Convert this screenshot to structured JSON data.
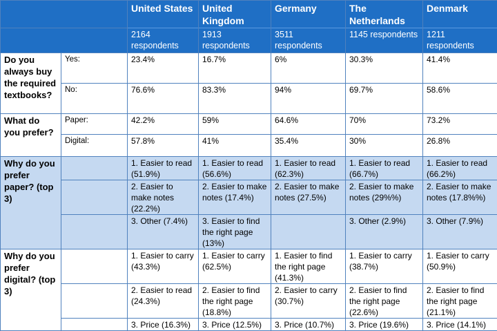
{
  "countries": [
    {
      "name": "United States",
      "respondents": "2164 respondents"
    },
    {
      "name": "United Kingdom",
      "respondents": "1913 respondents"
    },
    {
      "name": "Germany",
      "respondents": "3511 respondents"
    },
    {
      "name": "The Netherlands",
      "respondents": "1145 respondents"
    },
    {
      "name": "Denmark",
      "respondents": "1211 respondents"
    }
  ],
  "q1": {
    "question": "Do you always buy the required textbooks?",
    "yes_label": "Yes:",
    "yes": [
      "23.4%",
      "16.7%",
      "6%",
      "30.3%",
      "41.4%"
    ],
    "no_label": "No:",
    "no": [
      "76.6%",
      "83.3%",
      "94%",
      "69.7%",
      "58.6%"
    ]
  },
  "q2": {
    "question": "What do you prefer?",
    "paper_label": "Paper:",
    "paper": [
      "42.2%",
      "59%",
      "64.6%",
      "70%",
      "73.2%"
    ],
    "digital_label": "Digital:",
    "digital": [
      "57.8%",
      "41%",
      "35.4%",
      "30%",
      "26.8%"
    ]
  },
  "q3": {
    "question": "Why do you prefer paper? (top 3)",
    "rows": [
      [
        "1. Easier to read (51.9%)",
        "1. Easier to read (56.6%)",
        "1. Easier to read (62.3%)",
        "1. Easier to read (66.7%)",
        "1. Easier to read (66.2%)"
      ],
      [
        "2. Easier to make notes (22.2%)",
        "2. Easier to make notes (17.4%)",
        "2. Easier to make notes (27.5%)",
        "2. Easier to make notes (29%%)",
        "2. Easier to make notes (17.8%%)"
      ],
      [
        "3. Other (7.4%)",
        "3. Easier to find the right page (13%)",
        "",
        "3. Other (2.9%)",
        "3. Other (7.9%)"
      ]
    ]
  },
  "q4": {
    "question": "Why do you prefer digital? (top 3)",
    "rows": [
      [
        "1. Easier to carry (43.3%)",
        "1. Easier to carry (62.5%)",
        "1. Easier to find the right page (41.3%)",
        "1. Easier to carry (38.7%)",
        "1. Easier to carry (50.9%)"
      ],
      [
        "2. Easier to read (24.3%)",
        "2. Easier to find the right page (18.8%)",
        "2. Easier to carry (30.7%)",
        "2. Easier to find the right page (22.6%)",
        "2. Easier to find the right page (21.1%)"
      ],
      [
        "3. Price (16.3%)",
        "3. Price (12.5%)",
        "3. Price (10.7%)",
        "3. Price (19.6%)",
        "3. Price (14.1%)"
      ]
    ]
  }
}
